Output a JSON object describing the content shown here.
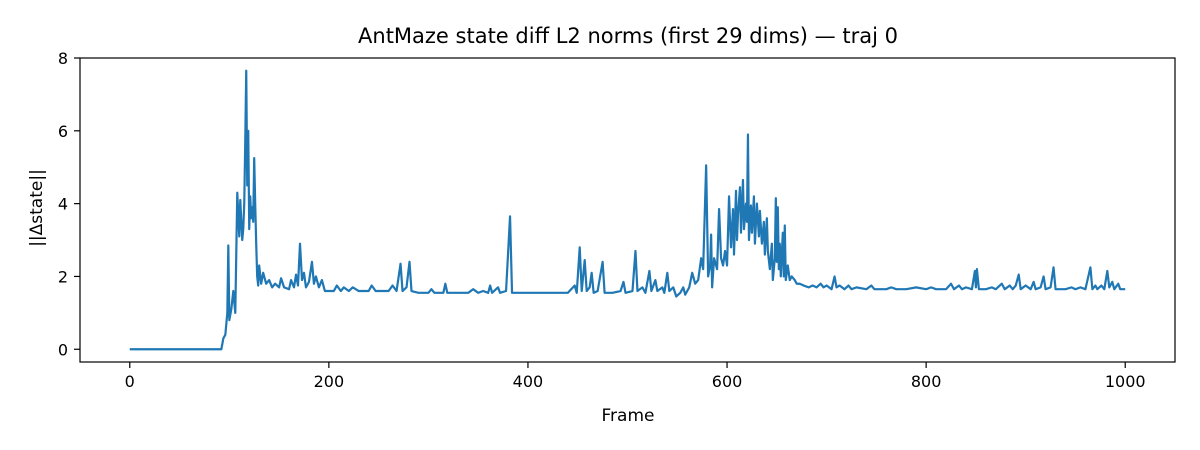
{
  "chart_data": {
    "type": "line",
    "title": "AntMaze state diff L2 norms (first 29 dims) — traj 0",
    "xlabel": "Frame",
    "ylabel": "||Δstate||",
    "xlim": [
      -50,
      1050
    ],
    "ylim": [
      -0.35,
      8.0
    ],
    "xticks": [
      0,
      200,
      400,
      600,
      800,
      1000
    ],
    "yticks": [
      0,
      2,
      4,
      6,
      8
    ],
    "grid": false,
    "legend": "none",
    "series": [
      {
        "color": "#1f77b4",
        "points": [
          [
            0,
            0
          ],
          [
            92,
            0
          ],
          [
            94,
            0.3
          ],
          [
            96,
            0.4
          ],
          [
            98,
            1.0
          ],
          [
            99,
            2.85
          ],
          [
            100,
            0.8
          ],
          [
            102,
            1.1
          ],
          [
            104,
            1.6
          ],
          [
            106,
            1.0
          ],
          [
            108,
            4.3
          ],
          [
            110,
            3.1
          ],
          [
            111,
            4.1
          ],
          [
            113,
            3.0
          ],
          [
            114,
            3.3
          ],
          [
            115,
            4.0
          ],
          [
            116,
            5.7
          ],
          [
            117,
            7.65
          ],
          [
            118,
            4.5
          ],
          [
            119,
            6.0
          ],
          [
            120,
            3.3
          ],
          [
            121,
            4.2
          ],
          [
            122,
            3.6
          ],
          [
            123,
            3.9
          ],
          [
            124,
            3.5
          ],
          [
            125,
            5.25
          ],
          [
            126,
            4.0
          ],
          [
            127,
            2.9
          ],
          [
            128,
            2.0
          ],
          [
            129,
            1.75
          ],
          [
            130,
            2.3
          ],
          [
            132,
            1.8
          ],
          [
            134,
            2.1
          ],
          [
            137,
            1.8
          ],
          [
            140,
            1.9
          ],
          [
            143,
            1.7
          ],
          [
            146,
            1.8
          ],
          [
            150,
            1.7
          ],
          [
            152,
            1.95
          ],
          [
            155,
            1.7
          ],
          [
            160,
            1.65
          ],
          [
            162,
            1.9
          ],
          [
            165,
            1.7
          ],
          [
            167,
            2.05
          ],
          [
            169,
            1.75
          ],
          [
            171,
            2.9
          ],
          [
            173,
            1.9
          ],
          [
            175,
            2.1
          ],
          [
            177,
            1.7
          ],
          [
            180,
            1.85
          ],
          [
            183,
            2.4
          ],
          [
            185,
            1.8
          ],
          [
            187,
            2.0
          ],
          [
            190,
            1.7
          ],
          [
            193,
            1.9
          ],
          [
            196,
            1.6
          ],
          [
            200,
            1.6
          ],
          [
            205,
            1.6
          ],
          [
            208,
            1.75
          ],
          [
            212,
            1.6
          ],
          [
            215,
            1.7
          ],
          [
            220,
            1.6
          ],
          [
            224,
            1.7
          ],
          [
            230,
            1.6
          ],
          [
            240,
            1.6
          ],
          [
            243,
            1.75
          ],
          [
            247,
            1.6
          ],
          [
            255,
            1.6
          ],
          [
            260,
            1.6
          ],
          [
            264,
            1.75
          ],
          [
            268,
            1.6
          ],
          [
            272,
            2.35
          ],
          [
            274,
            1.6
          ],
          [
            278,
            1.7
          ],
          [
            281,
            2.4
          ],
          [
            283,
            1.6
          ],
          [
            290,
            1.55
          ],
          [
            300,
            1.55
          ],
          [
            303,
            1.65
          ],
          [
            306,
            1.55
          ],
          [
            315,
            1.55
          ],
          [
            317,
            1.8
          ],
          [
            319,
            1.55
          ],
          [
            330,
            1.55
          ],
          [
            340,
            1.55
          ],
          [
            345,
            1.65
          ],
          [
            350,
            1.55
          ],
          [
            355,
            1.6
          ],
          [
            360,
            1.55
          ],
          [
            362,
            1.75
          ],
          [
            364,
            1.55
          ],
          [
            370,
            1.7
          ],
          [
            372,
            1.55
          ],
          [
            378,
            1.6
          ],
          [
            382,
            3.65
          ],
          [
            384,
            1.55
          ],
          [
            390,
            1.55
          ],
          [
            400,
            1.55
          ],
          [
            410,
            1.55
          ],
          [
            420,
            1.55
          ],
          [
            430,
            1.55
          ],
          [
            440,
            1.55
          ],
          [
            447,
            1.75
          ],
          [
            449,
            1.55
          ],
          [
            452,
            2.8
          ],
          [
            454,
            1.6
          ],
          [
            457,
            2.45
          ],
          [
            459,
            1.6
          ],
          [
            462,
            1.7
          ],
          [
            464,
            2.1
          ],
          [
            466,
            1.55
          ],
          [
            470,
            1.6
          ],
          [
            475,
            2.4
          ],
          [
            477,
            1.55
          ],
          [
            485,
            1.55
          ],
          [
            493,
            1.6
          ],
          [
            496,
            1.85
          ],
          [
            498,
            1.55
          ],
          [
            505,
            1.6
          ],
          [
            508,
            2.7
          ],
          [
            510,
            1.6
          ],
          [
            515,
            1.7
          ],
          [
            518,
            1.55
          ],
          [
            522,
            2.15
          ],
          [
            524,
            1.6
          ],
          [
            528,
            1.9
          ],
          [
            530,
            1.6
          ],
          [
            535,
            1.7
          ],
          [
            537,
            1.55
          ],
          [
            540,
            2.1
          ],
          [
            542,
            1.6
          ],
          [
            546,
            1.7
          ],
          [
            549,
            1.45
          ],
          [
            553,
            1.55
          ],
          [
            556,
            1.7
          ],
          [
            558,
            1.5
          ],
          [
            562,
            1.7
          ],
          [
            565,
            2.1
          ],
          [
            568,
            1.8
          ],
          [
            571,
            1.9
          ],
          [
            574,
            2.5
          ],
          [
            576,
            2.2
          ],
          [
            579,
            5.05
          ],
          [
            581,
            2.0
          ],
          [
            583,
            2.3
          ],
          [
            584,
            3.15
          ],
          [
            585,
            1.7
          ],
          [
            587,
            2.5
          ],
          [
            590,
            2.2
          ],
          [
            592,
            3.85
          ],
          [
            594,
            2.5
          ],
          [
            596,
            2.3
          ],
          [
            598,
            2.7
          ],
          [
            600,
            2.3
          ],
          [
            602,
            4.2
          ],
          [
            604,
            2.8
          ],
          [
            606,
            3.85
          ],
          [
            607,
            2.6
          ],
          [
            609,
            4.35
          ],
          [
            610,
            3.0
          ],
          [
            611,
            3.7
          ],
          [
            613,
            4.45
          ],
          [
            614,
            3.2
          ],
          [
            616,
            4.65
          ],
          [
            617,
            3.3
          ],
          [
            619,
            4.0
          ],
          [
            620,
            3.5
          ],
          [
            621,
            5.9
          ],
          [
            622,
            3.0
          ],
          [
            624,
            3.95
          ],
          [
            625,
            3.2
          ],
          [
            627,
            4.2
          ],
          [
            628,
            2.9
          ],
          [
            630,
            4.0
          ],
          [
            632,
            3.1
          ],
          [
            633,
            3.8
          ],
          [
            635,
            2.9
          ],
          [
            637,
            3.5
          ],
          [
            638,
            2.6
          ],
          [
            640,
            3.6
          ],
          [
            641,
            2.7
          ],
          [
            643,
            2.2
          ],
          [
            645,
            2.9
          ],
          [
            646,
            1.9
          ],
          [
            648,
            2.5
          ],
          [
            649,
            4.15
          ],
          [
            650,
            2.4
          ],
          [
            651,
            3.9
          ],
          [
            652,
            2.2
          ],
          [
            653,
            2.9
          ],
          [
            654,
            2.0
          ],
          [
            656,
            3.2
          ],
          [
            657,
            2.0
          ],
          [
            658,
            3.4
          ],
          [
            659,
            1.9
          ],
          [
            661,
            2.3
          ],
          [
            663,
            1.9
          ],
          [
            665,
            2.0
          ],
          [
            668,
            1.9
          ],
          [
            670,
            1.8
          ],
          [
            673,
            1.8
          ],
          [
            677,
            1.75
          ],
          [
            682,
            1.7
          ],
          [
            686,
            1.75
          ],
          [
            690,
            1.7
          ],
          [
            694,
            1.8
          ],
          [
            697,
            1.7
          ],
          [
            700,
            1.75
          ],
          [
            705,
            1.65
          ],
          [
            708,
            2.0
          ],
          [
            710,
            1.7
          ],
          [
            713,
            1.75
          ],
          [
            718,
            1.65
          ],
          [
            722,
            1.75
          ],
          [
            725,
            1.65
          ],
          [
            730,
            1.7
          ],
          [
            740,
            1.65
          ],
          [
            745,
            1.75
          ],
          [
            748,
            1.65
          ],
          [
            760,
            1.65
          ],
          [
            765,
            1.7
          ],
          [
            770,
            1.65
          ],
          [
            780,
            1.65
          ],
          [
            790,
            1.7
          ],
          [
            800,
            1.65
          ],
          [
            805,
            1.7
          ],
          [
            810,
            1.65
          ],
          [
            820,
            1.65
          ],
          [
            825,
            1.8
          ],
          [
            828,
            1.65
          ],
          [
            833,
            1.75
          ],
          [
            836,
            1.65
          ],
          [
            840,
            1.7
          ],
          [
            846,
            1.65
          ],
          [
            849,
            2.15
          ],
          [
            850,
            1.7
          ],
          [
            851,
            2.2
          ],
          [
            853,
            1.65
          ],
          [
            860,
            1.65
          ],
          [
            866,
            1.7
          ],
          [
            870,
            1.65
          ],
          [
            876,
            1.8
          ],
          [
            879,
            1.65
          ],
          [
            884,
            1.75
          ],
          [
            887,
            1.65
          ],
          [
            890,
            1.75
          ],
          [
            893,
            2.05
          ],
          [
            895,
            1.65
          ],
          [
            900,
            1.75
          ],
          [
            905,
            1.65
          ],
          [
            908,
            1.85
          ],
          [
            910,
            1.65
          ],
          [
            915,
            1.7
          ],
          [
            918,
            2.0
          ],
          [
            920,
            1.65
          ],
          [
            925,
            1.7
          ],
          [
            928,
            2.25
          ],
          [
            930,
            1.65
          ],
          [
            940,
            1.65
          ],
          [
            946,
            1.7
          ],
          [
            950,
            1.65
          ],
          [
            955,
            1.7
          ],
          [
            960,
            1.65
          ],
          [
            965,
            2.25
          ],
          [
            967,
            1.65
          ],
          [
            970,
            1.75
          ],
          [
            972,
            1.65
          ],
          [
            976,
            1.75
          ],
          [
            979,
            1.65
          ],
          [
            982,
            2.15
          ],
          [
            984,
            1.7
          ],
          [
            987,
            1.85
          ],
          [
            989,
            1.65
          ],
          [
            993,
            1.8
          ],
          [
            995,
            1.65
          ],
          [
            1000,
            1.65
          ]
        ]
      }
    ]
  }
}
